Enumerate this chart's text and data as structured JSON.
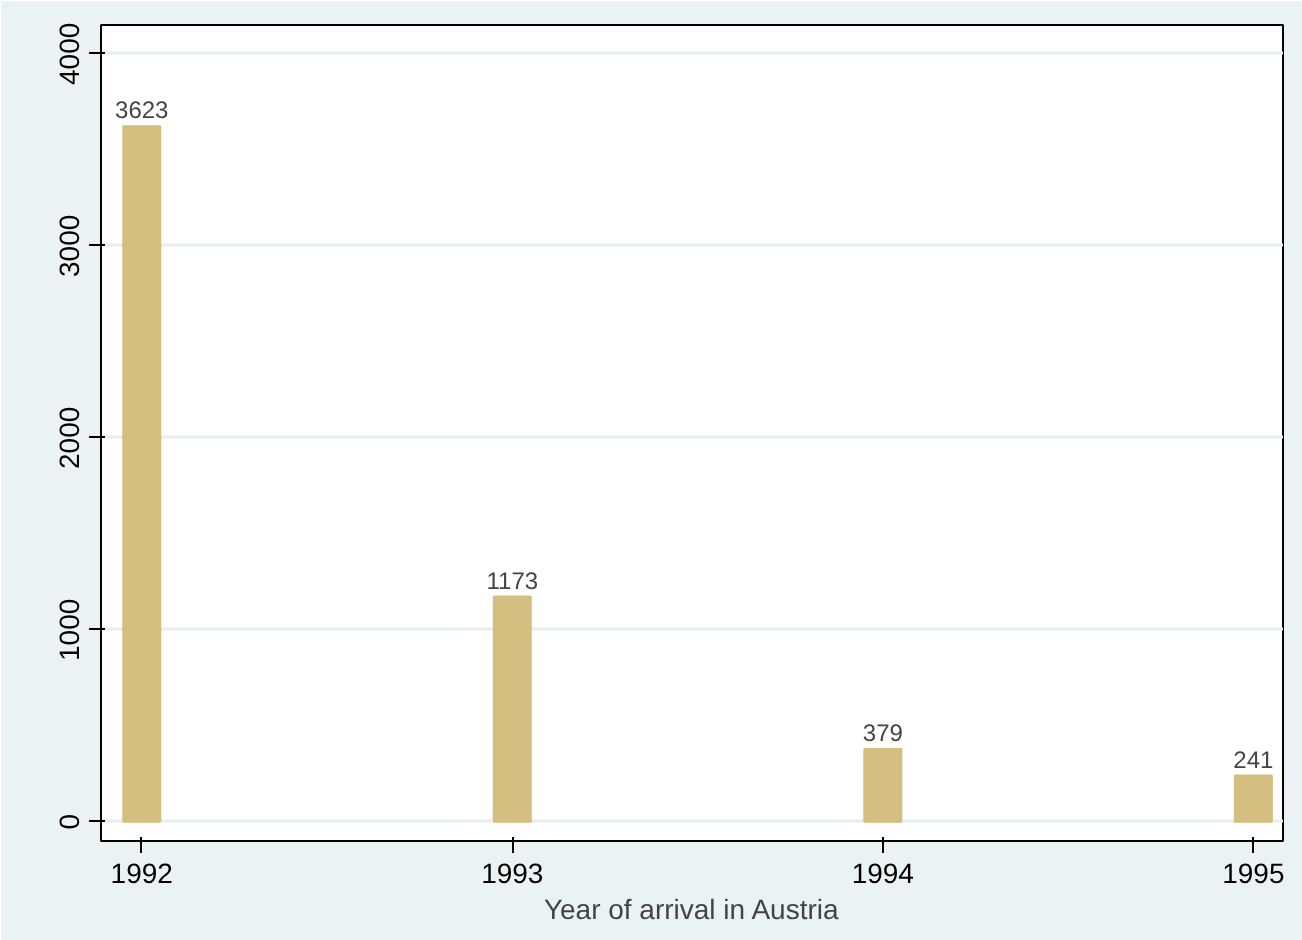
{
  "chart_data": {
    "type": "bar",
    "xlabel": "Year of arrival in Austria",
    "x": [
      1992,
      1993,
      1994,
      1995
    ],
    "values": [
      3623,
      1173,
      379,
      241
    ],
    "color": "#d5bf80",
    "data_labels": true,
    "xlim": [
      1991.89,
      1995.08
    ],
    "xticks": [
      1992,
      1993,
      1994,
      1995
    ],
    "ylim": [
      -100,
      4150
    ],
    "yticks": [
      0,
      1000,
      2000,
      3000,
      4000
    ],
    "grid": "y"
  }
}
